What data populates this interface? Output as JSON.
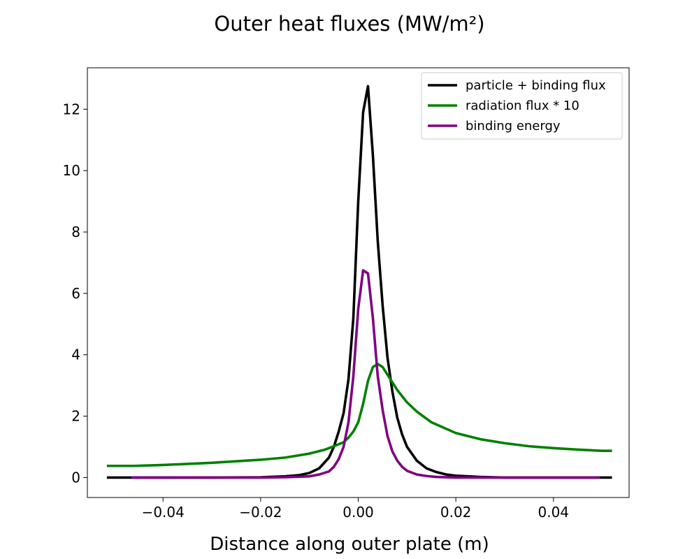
{
  "chart_data": {
    "type": "line",
    "title": "Outer heat fluxes (MW/m²)",
    "xlabel": "Distance along outer plate (m)",
    "ylabel": "",
    "xlim": [
      -0.0555,
      0.0555
    ],
    "ylim": [
      -0.65,
      13.35
    ],
    "xticks": [
      -0.04,
      -0.02,
      0.0,
      0.02,
      0.04
    ],
    "xtick_labels": [
      "−0.04",
      "−0.02",
      "0.00",
      "0.02",
      "0.04"
    ],
    "yticks": [
      0,
      2,
      4,
      6,
      8,
      10,
      12
    ],
    "ytick_labels": [
      "0",
      "2",
      "4",
      "6",
      "8",
      "10",
      "12"
    ],
    "grid": false,
    "legend_position": "top-right",
    "series": [
      {
        "name": "particle + binding flux",
        "color": "#000000",
        "x": [
          -0.0515,
          -0.046,
          -0.04,
          -0.03,
          -0.02,
          -0.015,
          -0.012,
          -0.01,
          -0.008,
          -0.006,
          -0.005,
          -0.004,
          -0.003,
          -0.002,
          -0.001,
          0.0,
          0.001,
          0.002,
          0.003,
          0.004,
          0.005,
          0.006,
          0.007,
          0.008,
          0.009,
          0.01,
          0.012,
          0.014,
          0.016,
          0.018,
          0.02,
          0.025,
          0.03,
          0.04,
          0.052
        ],
        "y": [
          0.0,
          0.0,
          0.0,
          0.0,
          0.01,
          0.04,
          0.08,
          0.15,
          0.3,
          0.65,
          1.0,
          1.5,
          2.1,
          3.2,
          5.2,
          9.0,
          11.9,
          12.75,
          10.5,
          7.7,
          5.6,
          3.9,
          2.8,
          1.95,
          1.4,
          1.0,
          0.55,
          0.3,
          0.18,
          0.1,
          0.06,
          0.02,
          0.0,
          0.0,
          0.0
        ]
      },
      {
        "name": "radiation flux * 10",
        "color": "#008000",
        "x": [
          -0.0515,
          -0.046,
          -0.04,
          -0.03,
          -0.02,
          -0.015,
          -0.01,
          -0.007,
          -0.005,
          -0.003,
          -0.002,
          -0.001,
          0.0,
          0.001,
          0.002,
          0.003,
          0.004,
          0.005,
          0.006,
          0.008,
          0.01,
          0.012,
          0.015,
          0.02,
          0.025,
          0.03,
          0.035,
          0.04,
          0.045,
          0.05,
          0.052
        ],
        "y": [
          0.38,
          0.38,
          0.41,
          0.48,
          0.58,
          0.65,
          0.78,
          0.9,
          1.02,
          1.15,
          1.3,
          1.5,
          1.8,
          2.4,
          3.15,
          3.6,
          3.7,
          3.6,
          3.35,
          2.85,
          2.45,
          2.15,
          1.8,
          1.45,
          1.25,
          1.12,
          1.02,
          0.96,
          0.91,
          0.87,
          0.87
        ]
      },
      {
        "name": "binding energy",
        "color": "#800080",
        "x": [
          -0.0465,
          -0.04,
          -0.03,
          -0.02,
          -0.015,
          -0.01,
          -0.008,
          -0.006,
          -0.005,
          -0.004,
          -0.003,
          -0.002,
          -0.001,
          0.0,
          0.001,
          0.002,
          0.003,
          0.004,
          0.005,
          0.006,
          0.007,
          0.008,
          0.009,
          0.01,
          0.012,
          0.014,
          0.016,
          0.02,
          0.025,
          0.03,
          0.04,
          0.0495
        ],
        "y": [
          0.0,
          0.0,
          0.0,
          0.0,
          0.01,
          0.04,
          0.1,
          0.2,
          0.35,
          0.6,
          1.0,
          1.8,
          3.3,
          5.5,
          6.75,
          6.65,
          5.2,
          3.3,
          2.2,
          1.35,
          0.85,
          0.55,
          0.35,
          0.22,
          0.1,
          0.05,
          0.02,
          0.0,
          0.0,
          0.0,
          0.0,
          0.0
        ]
      }
    ]
  }
}
